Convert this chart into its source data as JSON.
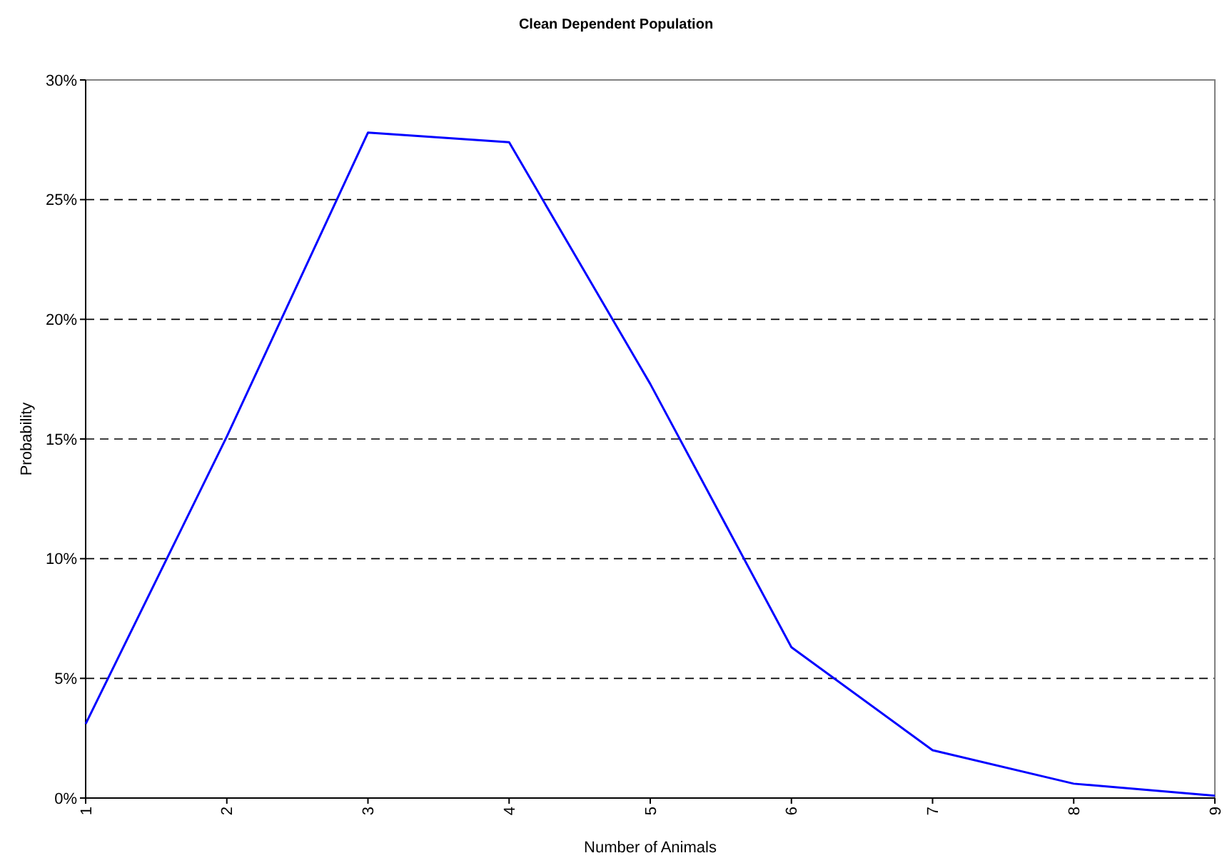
{
  "chart_data": {
    "type": "line",
    "title": "Clean Dependent Population",
    "xlabel": "Number of Animals",
    "ylabel": "Probability",
    "x": [
      1,
      2,
      3,
      4,
      5,
      6,
      7,
      8,
      9
    ],
    "series": [
      {
        "color": "#0000ff",
        "values": [
          3.1,
          15.1,
          27.8,
          27.4,
          17.3,
          6.3,
          2.0,
          0.6,
          0.1
        ]
      }
    ],
    "xlim": [
      1,
      9
    ],
    "xticks": [
      1,
      2,
      3,
      4,
      5,
      6,
      7,
      8,
      9
    ],
    "ylim": [
      0,
      30
    ],
    "yticks": [
      {
        "value": 0,
        "label": "0%"
      },
      {
        "value": 5,
        "label": "5%"
      },
      {
        "value": 10,
        "label": "10%"
      },
      {
        "value": 15,
        "label": "15%"
      },
      {
        "value": 20,
        "label": "20%"
      },
      {
        "value": 25,
        "label": "25%"
      },
      {
        "value": 30,
        "label": "30%"
      }
    ],
    "grid": "y",
    "marker": "none",
    "line_style": "solid"
  }
}
